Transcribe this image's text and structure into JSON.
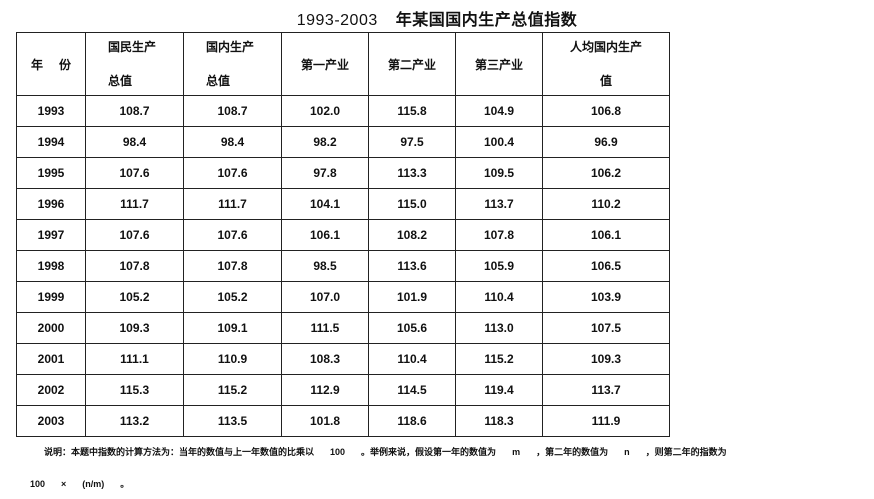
{
  "title": {
    "years": "1993-2003",
    "text": "年某国国内生产总值指数"
  },
  "headers": {
    "year": [
      "年",
      "份"
    ],
    "gnp": [
      "国民生产",
      "总值"
    ],
    "gdp": [
      "国内生产",
      "总值"
    ],
    "primary": "第一产业",
    "secondary": "第二产业",
    "tertiary": "第三产业",
    "percapita": [
      "人均国内生产",
      "值"
    ]
  },
  "rows": [
    [
      "1993",
      "108.7",
      "108.7",
      "102.0",
      "115.8",
      "104.9",
      "106.8"
    ],
    [
      "1994",
      "98.4",
      "98.4",
      "98.2",
      "97.5",
      "100.4",
      "96.9"
    ],
    [
      "1995",
      "107.6",
      "107.6",
      "97.8",
      "113.3",
      "109.5",
      "106.2"
    ],
    [
      "1996",
      "111.7",
      "111.7",
      "104.1",
      "115.0",
      "113.7",
      "110.2"
    ],
    [
      "1997",
      "107.6",
      "107.6",
      "106.1",
      "108.2",
      "107.8",
      "106.1"
    ],
    [
      "1998",
      "107.8",
      "107.8",
      "98.5",
      "113.6",
      "105.9",
      "106.5"
    ],
    [
      "1999",
      "105.2",
      "105.2",
      "107.0",
      "101.9",
      "110.4",
      "103.9"
    ],
    [
      "2000",
      "109.3",
      "109.1",
      "111.5",
      "105.6",
      "113.0",
      "107.5"
    ],
    [
      "2001",
      "111.1",
      "110.9",
      "108.3",
      "110.4",
      "115.2",
      "109.3"
    ],
    [
      "2002",
      "115.3",
      "115.2",
      "112.9",
      "114.5",
      "119.4",
      "113.7"
    ],
    [
      "2003",
      "113.2",
      "113.5",
      "101.8",
      "118.6",
      "118.3",
      "111.9"
    ]
  ],
  "note": {
    "p1": "说明：本题中指数的计算方法为：当年的数值与上一年数值的比乘以",
    "v100": "100",
    "p2": "。举例来说，假设第一年的数值为",
    "m": "m",
    "p3": "，第二年的数值为",
    "n": "n",
    "p4": "，则第二年的指数为",
    "l2_100": "100",
    "times": "×",
    "frac": "(n/m)",
    "end": "。"
  }
}
